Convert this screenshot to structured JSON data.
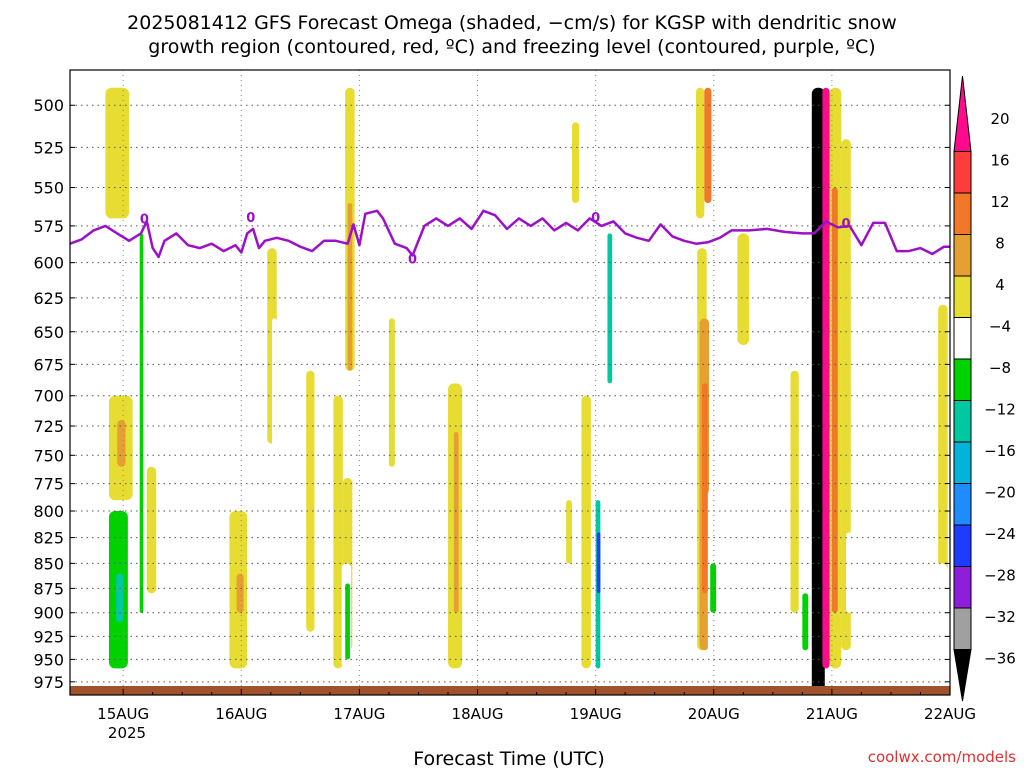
{
  "title": {
    "line1": "2025081412 GFS Forecast Omega (shaded, −cm/s) for KGSP with dendritic snow",
    "line2": "growth region (contoured, red, ºC) and freezing level (contoured, purple, ºC)"
  },
  "credit": "coolwx.com/models",
  "chart_data": {
    "type": "heatmap",
    "xlabel": "Forecast Time (UTC)",
    "x_ticks": [
      "15AUG",
      "16AUG",
      "17AUG",
      "18AUG",
      "19AUG",
      "20AUG",
      "21AUG",
      "22AUG"
    ],
    "x_year_label": "2025",
    "x_range_days_after_15AUG_00Z": [
      -0.45,
      7.0
    ],
    "y_ticks": [
      500,
      525,
      550,
      575,
      600,
      625,
      650,
      675,
      700,
      725,
      750,
      775,
      800,
      825,
      850,
      875,
      900,
      925,
      950,
      975
    ],
    "ylim": [
      480,
      990
    ],
    "y_scale": "log-pressure",
    "colorbar": {
      "labels": [
        "20",
        "16",
        "12",
        "8",
        "4",
        "−4",
        "−8",
        "−12",
        "−16",
        "−20",
        "−24",
        "−28",
        "−32",
        "−36"
      ],
      "colors": [
        "#ff0a8c",
        "#ff3c3c",
        "#f07828",
        "#e6a032",
        "#e6dc32",
        "#ffffff",
        "#00d200",
        "#00c8a0",
        "#00b4dc",
        "#1e8cff",
        "#1e3cff",
        "#8c1edc",
        "#a0a0a0",
        "#000000"
      ]
    },
    "freezing_level_label": "0",
    "freezing_level_color": "#9c10c8",
    "freezing_level_hpa": [
      [
        -0.45,
        587
      ],
      [
        -0.35,
        584
      ],
      [
        -0.25,
        578
      ],
      [
        -0.15,
        575
      ],
      [
        -0.05,
        580
      ],
      [
        0.05,
        585
      ],
      [
        0.15,
        580
      ],
      [
        0.2,
        572
      ],
      [
        0.25,
        590
      ],
      [
        0.3,
        596
      ],
      [
        0.35,
        585
      ],
      [
        0.45,
        580
      ],
      [
        0.55,
        588
      ],
      [
        0.65,
        590
      ],
      [
        0.75,
        587
      ],
      [
        0.85,
        592
      ],
      [
        0.95,
        588
      ],
      [
        1.0,
        593
      ],
      [
        1.05,
        580
      ],
      [
        1.1,
        577
      ],
      [
        1.15,
        590
      ],
      [
        1.2,
        585
      ],
      [
        1.3,
        583
      ],
      [
        1.4,
        585
      ],
      [
        1.5,
        589
      ],
      [
        1.6,
        592
      ],
      [
        1.7,
        585
      ],
      [
        1.8,
        585
      ],
      [
        1.9,
        587
      ],
      [
        1.95,
        574
      ],
      [
        2.0,
        588
      ],
      [
        2.05,
        567
      ],
      [
        2.15,
        565
      ],
      [
        2.2,
        570
      ],
      [
        2.3,
        587
      ],
      [
        2.4,
        590
      ],
      [
        2.45,
        595
      ],
      [
        2.55,
        575
      ],
      [
        2.65,
        570
      ],
      [
        2.75,
        575
      ],
      [
        2.85,
        570
      ],
      [
        2.95,
        577
      ],
      [
        3.05,
        565
      ],
      [
        3.15,
        568
      ],
      [
        3.25,
        577
      ],
      [
        3.35,
        570
      ],
      [
        3.45,
        575
      ],
      [
        3.55,
        570
      ],
      [
        3.65,
        578
      ],
      [
        3.75,
        573
      ],
      [
        3.85,
        578
      ],
      [
        3.95,
        570
      ],
      [
        4.05,
        575
      ],
      [
        4.15,
        572
      ],
      [
        4.25,
        580
      ],
      [
        4.35,
        583
      ],
      [
        4.45,
        585
      ],
      [
        4.55,
        574
      ],
      [
        4.65,
        582
      ],
      [
        4.75,
        585
      ],
      [
        4.85,
        587
      ],
      [
        4.95,
        586
      ],
      [
        5.05,
        583
      ],
      [
        5.15,
        578
      ],
      [
        5.3,
        578
      ],
      [
        5.45,
        577
      ],
      [
        5.6,
        579
      ],
      [
        5.75,
        580
      ],
      [
        5.85,
        580
      ],
      [
        5.95,
        572
      ],
      [
        6.05,
        576
      ],
      [
        6.15,
        575
      ],
      [
        6.25,
        588
      ],
      [
        6.35,
        573
      ],
      [
        6.45,
        573
      ],
      [
        6.55,
        592
      ],
      [
        6.65,
        592
      ],
      [
        6.75,
        590
      ],
      [
        6.85,
        594
      ],
      [
        6.95,
        589
      ],
      [
        7.0,
        589
      ]
    ],
    "freezing_level_label_points": [
      [
        0.18,
        570
      ],
      [
        1.08,
        569
      ],
      [
        2.45,
        597
      ],
      [
        4.0,
        569
      ],
      [
        6.12,
        573
      ]
    ],
    "omega_cells": [
      [
        -0.15,
        0.05,
        490,
        570,
        4
      ],
      [
        -0.08,
        -0.02,
        770,
        960,
        -4
      ],
      [
        -0.12,
        0.08,
        700,
        790,
        4
      ],
      [
        -0.05,
        0.02,
        720,
        760,
        8
      ],
      [
        0.12,
        0.18,
        490,
        960,
        -4
      ],
      [
        0.14,
        0.17,
        580,
        900,
        -8
      ],
      [
        -0.12,
        0.04,
        800,
        960,
        -8
      ],
      [
        -0.06,
        0.0,
        860,
        910,
        -12
      ],
      [
        0.2,
        0.28,
        760,
        880,
        4
      ],
      [
        0.38,
        0.42,
        780,
        850,
        -4
      ],
      [
        0.9,
        1.05,
        800,
        960,
        4
      ],
      [
        0.96,
        1.02,
        860,
        900,
        8
      ],
      [
        1.05,
        1.12,
        660,
        900,
        -4
      ],
      [
        1.1,
        1.16,
        490,
        520,
        -4
      ],
      [
        1.22,
        1.3,
        590,
        740,
        4
      ],
      [
        1.26,
        1.3,
        640,
        760,
        -4
      ],
      [
        1.55,
        1.62,
        680,
        920,
        4
      ],
      [
        1.78,
        1.86,
        700,
        960,
        4
      ],
      [
        1.86,
        1.94,
        770,
        940,
        4
      ],
      [
        1.85,
        1.93,
        850,
        960,
        -4
      ],
      [
        1.88,
        1.92,
        870,
        950,
        -8
      ],
      [
        1.88,
        1.96,
        490,
        680,
        4
      ],
      [
        1.9,
        1.94,
        560,
        680,
        8
      ],
      [
        2.02,
        2.1,
        720,
        900,
        -4
      ],
      [
        2.25,
        2.3,
        640,
        760,
        4
      ],
      [
        2.75,
        2.87,
        690,
        960,
        4
      ],
      [
        2.8,
        2.84,
        730,
        900,
        8
      ],
      [
        2.88,
        2.94,
        820,
        880,
        -4
      ],
      [
        3.75,
        3.8,
        790,
        850,
        4
      ],
      [
        3.8,
        3.87,
        490,
        520,
        -4
      ],
      [
        3.8,
        3.86,
        510,
        560,
        4
      ],
      [
        3.88,
        3.96,
        700,
        960,
        4
      ],
      [
        3.98,
        4.05,
        760,
        960,
        -4
      ],
      [
        4.0,
        4.04,
        790,
        960,
        -12
      ],
      [
        4.01,
        4.04,
        820,
        880,
        -24
      ],
      [
        4.05,
        4.13,
        510,
        960,
        -4
      ],
      [
        4.1,
        4.14,
        580,
        690,
        -12
      ],
      [
        4.18,
        4.23,
        860,
        920,
        -4
      ],
      [
        4.85,
        4.92,
        490,
        570,
        4
      ],
      [
        4.92,
        4.98,
        490,
        560,
        12
      ],
      [
        4.86,
        4.94,
        590,
        940,
        4
      ],
      [
        4.88,
        4.96,
        640,
        940,
        8
      ],
      [
        4.9,
        4.95,
        690,
        880,
        12
      ],
      [
        4.95,
        5.03,
        780,
        960,
        -4
      ],
      [
        4.97,
        5.02,
        850,
        900,
        -8
      ],
      [
        5.03,
        5.08,
        880,
        930,
        -4
      ],
      [
        5.2,
        5.3,
        580,
        660,
        4
      ],
      [
        5.65,
        5.72,
        680,
        900,
        4
      ],
      [
        5.72,
        5.82,
        840,
        960,
        -4
      ],
      [
        5.75,
        5.8,
        880,
        940,
        -8
      ],
      [
        5.83,
        5.94,
        490,
        990,
        -36
      ],
      [
        5.92,
        5.98,
        490,
        960,
        20
      ],
      [
        5.98,
        6.08,
        490,
        960,
        4
      ],
      [
        6.0,
        6.05,
        550,
        900,
        12
      ],
      [
        6.08,
        6.16,
        520,
        940,
        4
      ],
      [
        6.12,
        6.17,
        820,
        900,
        -4
      ],
      [
        6.2,
        6.28,
        530,
        560,
        -4
      ],
      [
        6.25,
        6.3,
        850,
        920,
        -4
      ],
      [
        6.75,
        6.85,
        860,
        930,
        -4
      ],
      [
        6.9,
        6.98,
        630,
        940,
        4
      ],
      [
        6.85,
        6.98,
        850,
        960,
        -4
      ]
    ],
    "surface_band": "brown",
    "surface_band_color": "#a0522d"
  }
}
